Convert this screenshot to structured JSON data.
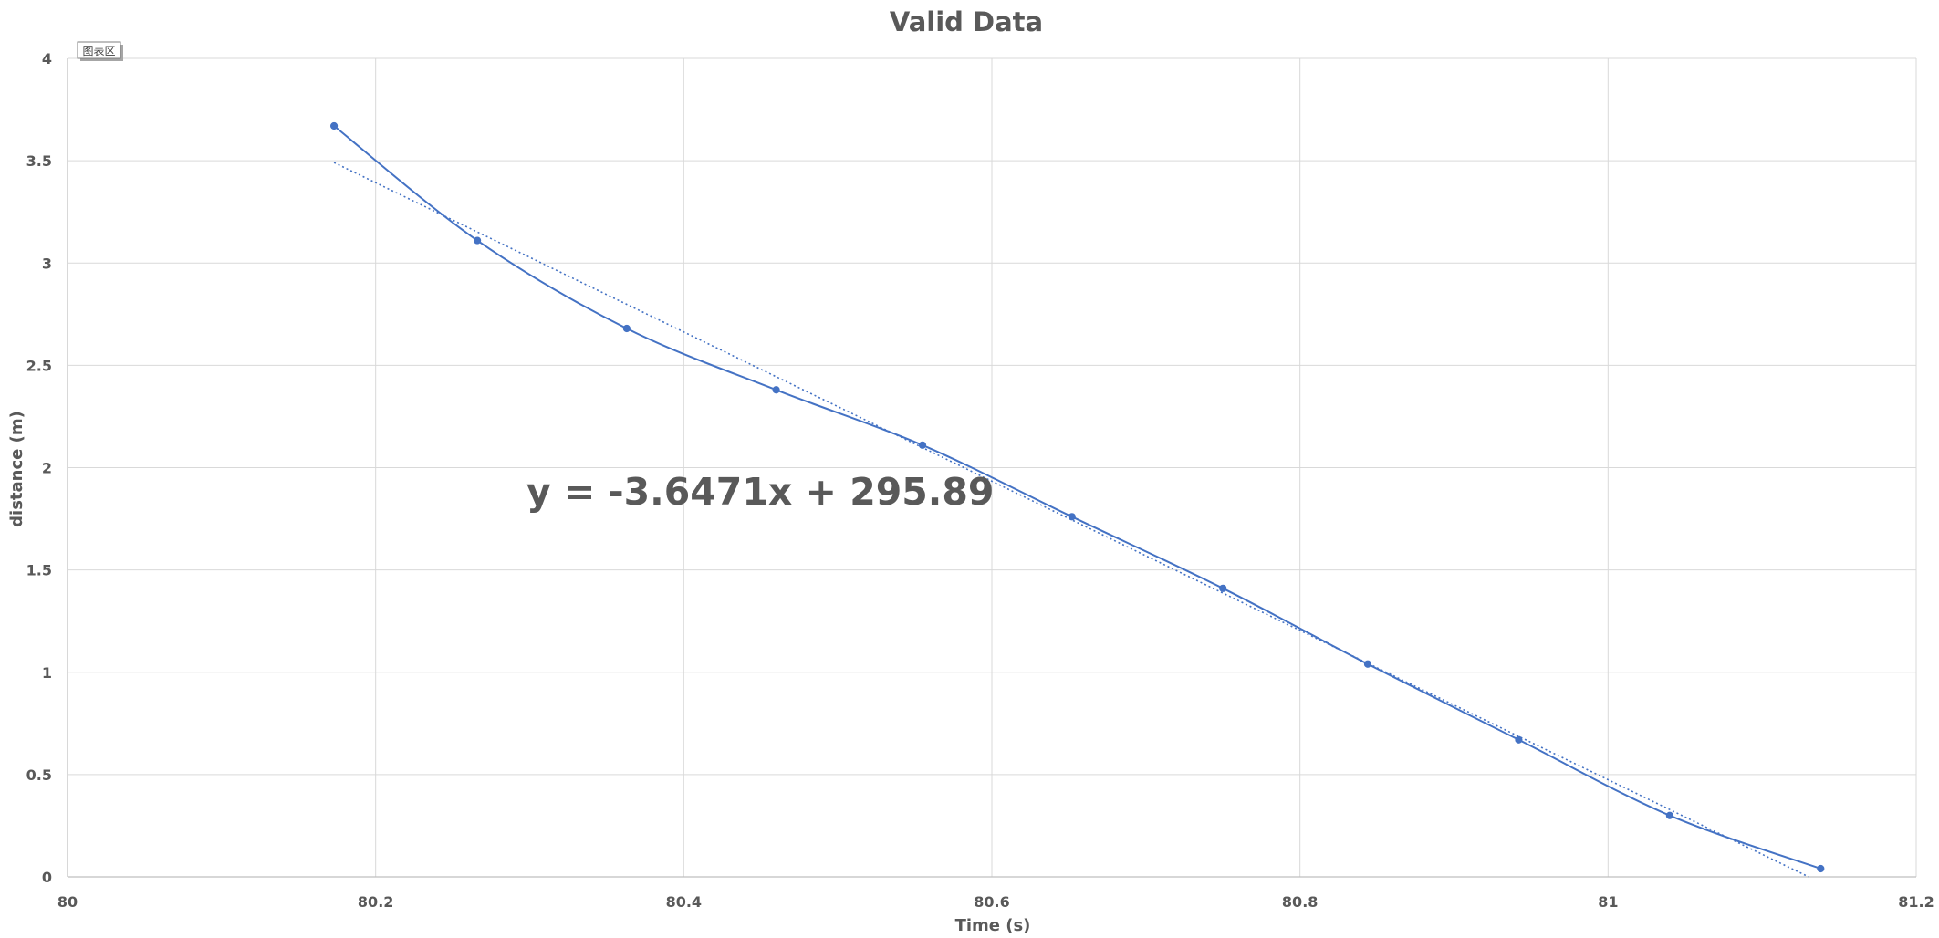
{
  "chart_data": {
    "type": "scatter",
    "title": "Valid Data",
    "xlabel": "Time (s)",
    "ylabel": "distance (m)",
    "xlim": [
      80,
      81.2
    ],
    "ylim": [
      0,
      4
    ],
    "x_ticks": [
      "80",
      "80.2",
      "80.4",
      "80.6",
      "80.8",
      "81",
      "81.2"
    ],
    "y_ticks": [
      "0",
      "0.5",
      "1",
      "1.5",
      "2",
      "2.5",
      "3",
      "3.5",
      "4"
    ],
    "grid": true,
    "legend": "none",
    "series": [
      {
        "style": "smooth-line-with-markers",
        "color": "#4472C4",
        "x": [
          80.173,
          80.266,
          80.363,
          80.46,
          80.555,
          80.652,
          80.75,
          80.844,
          80.942,
          81.04,
          81.138
        ],
        "y": [
          3.67,
          3.11,
          2.68,
          2.38,
          2.11,
          1.76,
          1.41,
          1.04,
          0.67,
          0.3,
          0.04
        ]
      }
    ],
    "trendline": {
      "type": "linear",
      "slope": -3.6471,
      "intercept": 295.89,
      "x_range": [
        80.173,
        81.13
      ],
      "style": "dotted",
      "color": "#4472C4",
      "equation_label": "y = -3.6471x + 295.89"
    },
    "plot_area_tag": "图表区"
  }
}
